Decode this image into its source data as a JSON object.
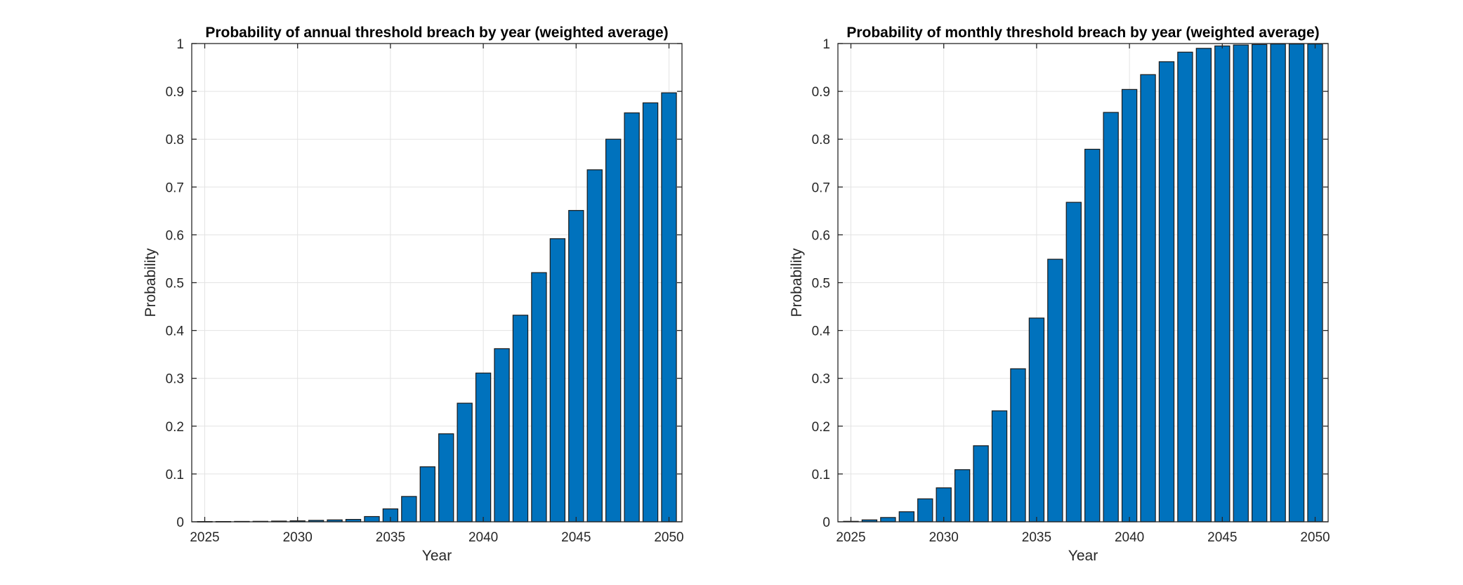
{
  "chart_data": [
    {
      "type": "bar",
      "title": "Probability of annual threshold breach by year (weighted average)",
      "xlabel": "Year",
      "ylabel": "Probability",
      "categories": [
        2025,
        2026,
        2027,
        2028,
        2029,
        2030,
        2031,
        2032,
        2033,
        2034,
        2035,
        2036,
        2037,
        2038,
        2039,
        2040,
        2041,
        2042,
        2043,
        2044,
        2045,
        2046,
        2047,
        2048,
        2049,
        2050
      ],
      "values": [
        0.0005,
        0.0006,
        0.0008,
        0.001,
        0.0015,
        0.002,
        0.003,
        0.004,
        0.005,
        0.011,
        0.027,
        0.053,
        0.115,
        0.184,
        0.248,
        0.311,
        0.362,
        0.432,
        0.521,
        0.592,
        0.651,
        0.736,
        0.8,
        0.855,
        0.876,
        0.897
      ],
      "xlim": [
        2024.3,
        2050.7
      ],
      "ylim": [
        0,
        1
      ],
      "xticks": [
        2025,
        2030,
        2035,
        2040,
        2045,
        2050
      ],
      "yticks": [
        0,
        0.1,
        0.2,
        0.3,
        0.4,
        0.5,
        0.6,
        0.7,
        0.8,
        0.9,
        1
      ],
      "grid": true,
      "bar_color": "#0072BD",
      "legend": "none"
    },
    {
      "type": "bar",
      "title": "Probability of monthly threshold breach by year (weighted average)",
      "xlabel": "Year",
      "ylabel": "Probability",
      "categories": [
        2025,
        2026,
        2027,
        2028,
        2029,
        2030,
        2031,
        2032,
        2033,
        2034,
        2035,
        2036,
        2037,
        2038,
        2039,
        2040,
        2041,
        2042,
        2043,
        2044,
        2045,
        2046,
        2047,
        2048,
        2049,
        2050
      ],
      "values": [
        0.001,
        0.004,
        0.009,
        0.021,
        0.048,
        0.071,
        0.109,
        0.159,
        0.232,
        0.32,
        0.426,
        0.549,
        0.668,
        0.779,
        0.856,
        0.904,
        0.935,
        0.962,
        0.982,
        0.99,
        0.995,
        0.997,
        0.998,
        0.999,
        0.999,
        0.999
      ],
      "xlim": [
        2024.3,
        2050.7
      ],
      "ylim": [
        0,
        1
      ],
      "xticks": [
        2025,
        2030,
        2035,
        2040,
        2045,
        2050
      ],
      "yticks": [
        0,
        0.1,
        0.2,
        0.3,
        0.4,
        0.5,
        0.6,
        0.7,
        0.8,
        0.9,
        1
      ],
      "grid": true,
      "bar_color": "#0072BD",
      "legend": "none"
    }
  ]
}
